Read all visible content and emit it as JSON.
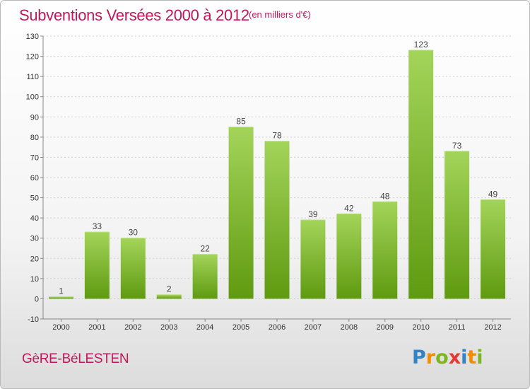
{
  "title": "Subventions Versées 2000 à 2012",
  "unit_note": "(en milliers d'€)",
  "commune": "GèRE-BéLESTEN",
  "brand": {
    "letters": [
      "P",
      "r",
      "o",
      "x",
      "i",
      "t",
      "i"
    ],
    "colors": [
      "#2f83c6",
      "#f28c00",
      "#7cb51c",
      "#e53935",
      "#2f83c6",
      "#f28c00",
      "#7cb51c"
    ]
  },
  "colors": {
    "accent": "#c2185b",
    "bar_light": "#a3d45a",
    "bar_dark": "#5f9a10",
    "grid": "#cfcfcf"
  },
  "chart_data": {
    "type": "bar",
    "categories": [
      "2000",
      "2001",
      "2002",
      "2003",
      "2004",
      "2005",
      "2006",
      "2007",
      "2008",
      "2009",
      "2010",
      "2011",
      "2012"
    ],
    "values": [
      1,
      33,
      30,
      2,
      22,
      85,
      78,
      39,
      42,
      48,
      123,
      73,
      49
    ],
    "ylim": [
      -10,
      130
    ],
    "yticks": [
      -10,
      0,
      10,
      20,
      30,
      40,
      50,
      60,
      70,
      80,
      90,
      100,
      110,
      120,
      130
    ],
    "grid": "horizontal-dashed",
    "legend": "none"
  }
}
